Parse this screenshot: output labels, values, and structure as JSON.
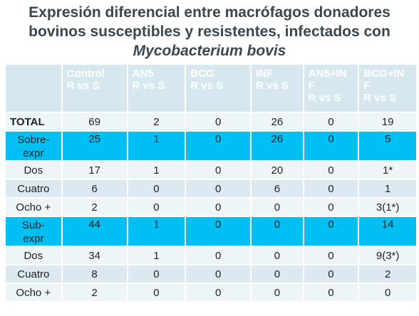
{
  "title": {
    "line1": "Expresión  diferencial entre macrófagos donadores",
    "line2": "bovinos susceptibles y resistentes, infectados con",
    "line3": "Mycobacterium bovis"
  },
  "table": {
    "headers": [
      {
        "line1": "",
        "line2": "",
        "line3": ""
      },
      {
        "line1": "Control",
        "line2": "R vs S",
        "line3": ""
      },
      {
        "line1": "AN5",
        "line2": "R vs S",
        "line3": ""
      },
      {
        "line1": "BCG",
        "line2": "R vs S",
        "line3": ""
      },
      {
        "line1": "INF",
        "line2": "R vs S",
        "line3": ""
      },
      {
        "line1": "AN5+IN",
        "line2": "F",
        "line3": "R vs S"
      },
      {
        "line1": "BCG+IN",
        "line2": "F",
        "line3": "R vs S"
      }
    ],
    "rows": [
      {
        "label": "TOTAL",
        "label2": "",
        "cells": [
          "69",
          "2",
          "0",
          "26",
          "0",
          "19"
        ]
      },
      {
        "label": "Sobre-",
        "label2": "expr",
        "cells": [
          "25",
          "1",
          "0",
          "26",
          "0",
          "5"
        ]
      },
      {
        "label": "Dos",
        "label2": "",
        "cells": [
          "17",
          "1",
          "0",
          "20",
          "0",
          "1*"
        ]
      },
      {
        "label": "Cuatro",
        "label2": "",
        "cells": [
          "6",
          "0",
          "0",
          "6",
          "0",
          "1"
        ]
      },
      {
        "label": "Ocho +",
        "label2": "",
        "cells": [
          "2",
          "0",
          "0",
          "0",
          "0",
          "3(1*)"
        ]
      },
      {
        "label": "Sub-",
        "label2": "expr",
        "cells": [
          "44",
          "1",
          "0",
          "0",
          "0",
          "14"
        ]
      },
      {
        "label": "Dos",
        "label2": "",
        "cells": [
          "34",
          "1",
          "0",
          "0",
          "0",
          "9(3*)"
        ]
      },
      {
        "label": "Cuatro",
        "label2": "",
        "cells": [
          "8",
          "0",
          "0",
          "0",
          "0",
          "2"
        ]
      },
      {
        "label": "Ocho +",
        "label2": "",
        "cells": [
          "2",
          "0",
          "0",
          "0",
          "0",
          "0"
        ]
      }
    ]
  },
  "colors": {
    "title": "#3a4650",
    "header_bg": "#d6e7f0",
    "highlight_row": "#00bff3",
    "row_light": "#eef5f9",
    "row_alt": "#dce9f0"
  }
}
